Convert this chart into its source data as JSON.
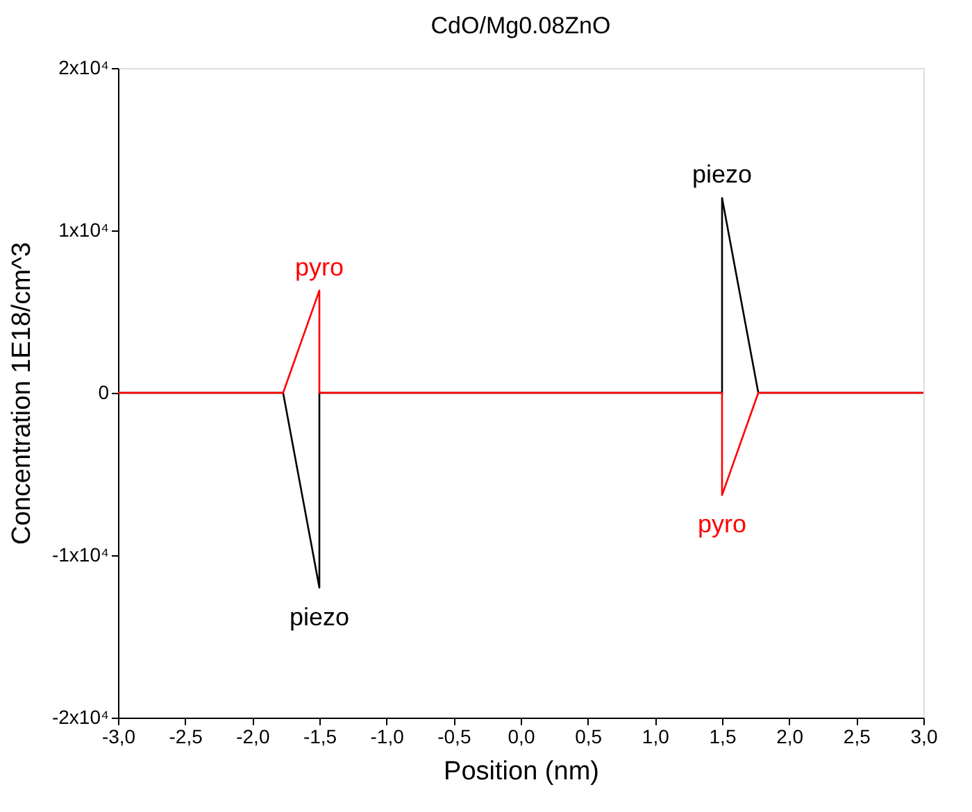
{
  "chart_data": {
    "type": "line",
    "title": "CdO/Mg0.08ZnO",
    "xlabel": "Position (nm)",
    "ylabel": "Concentration 1E18/cm^3",
    "xlim": [
      -3.0,
      3.0
    ],
    "xticks": [
      {
        "value": -3.0,
        "label": "-3,0"
      },
      {
        "value": -2.5,
        "label": "-2,5"
      },
      {
        "value": -2.0,
        "label": "-2,0"
      },
      {
        "value": -1.5,
        "label": "-1,5"
      },
      {
        "value": -1.0,
        "label": "-1,0"
      },
      {
        "value": -0.5,
        "label": "-0,5"
      },
      {
        "value": 0.0,
        "label": "0,0"
      },
      {
        "value": 0.5,
        "label": "0,5"
      },
      {
        "value": 1.0,
        "label": "1,0"
      },
      {
        "value": 1.5,
        "label": "1,5"
      },
      {
        "value": 2.0,
        "label": "2,0"
      },
      {
        "value": 2.5,
        "label": "2,5"
      },
      {
        "value": 3.0,
        "label": "3,0"
      }
    ],
    "ylim": [
      -20000,
      20000
    ],
    "yticks": [
      {
        "value": -20000,
        "label": "-2x10⁴"
      },
      {
        "value": -10000,
        "label": "-1x10⁴"
      },
      0,
      {
        "value": 10000,
        "label": "1x10⁴"
      },
      {
        "value": 20000,
        "label": "2x10⁴"
      }
    ],
    "grid": false,
    "marker": "none",
    "line_style": "solid",
    "series": [
      {
        "name": "piezo",
        "color": "#000000",
        "x": [
          -3.0,
          -1.77,
          -1.5,
          -1.5,
          1.5,
          1.5,
          1.77,
          3.0
        ],
        "values": [
          0,
          0,
          -12000,
          0,
          0,
          12000,
          0,
          0
        ]
      },
      {
        "name": "pyro",
        "color": "#ff0000",
        "x": [
          -3.0,
          -1.77,
          -1.5,
          -1.5,
          1.5,
          1.5,
          1.77,
          3.0
        ],
        "values": [
          0,
          0,
          6300,
          0,
          0,
          -6300,
          0,
          0
        ]
      }
    ]
  }
}
